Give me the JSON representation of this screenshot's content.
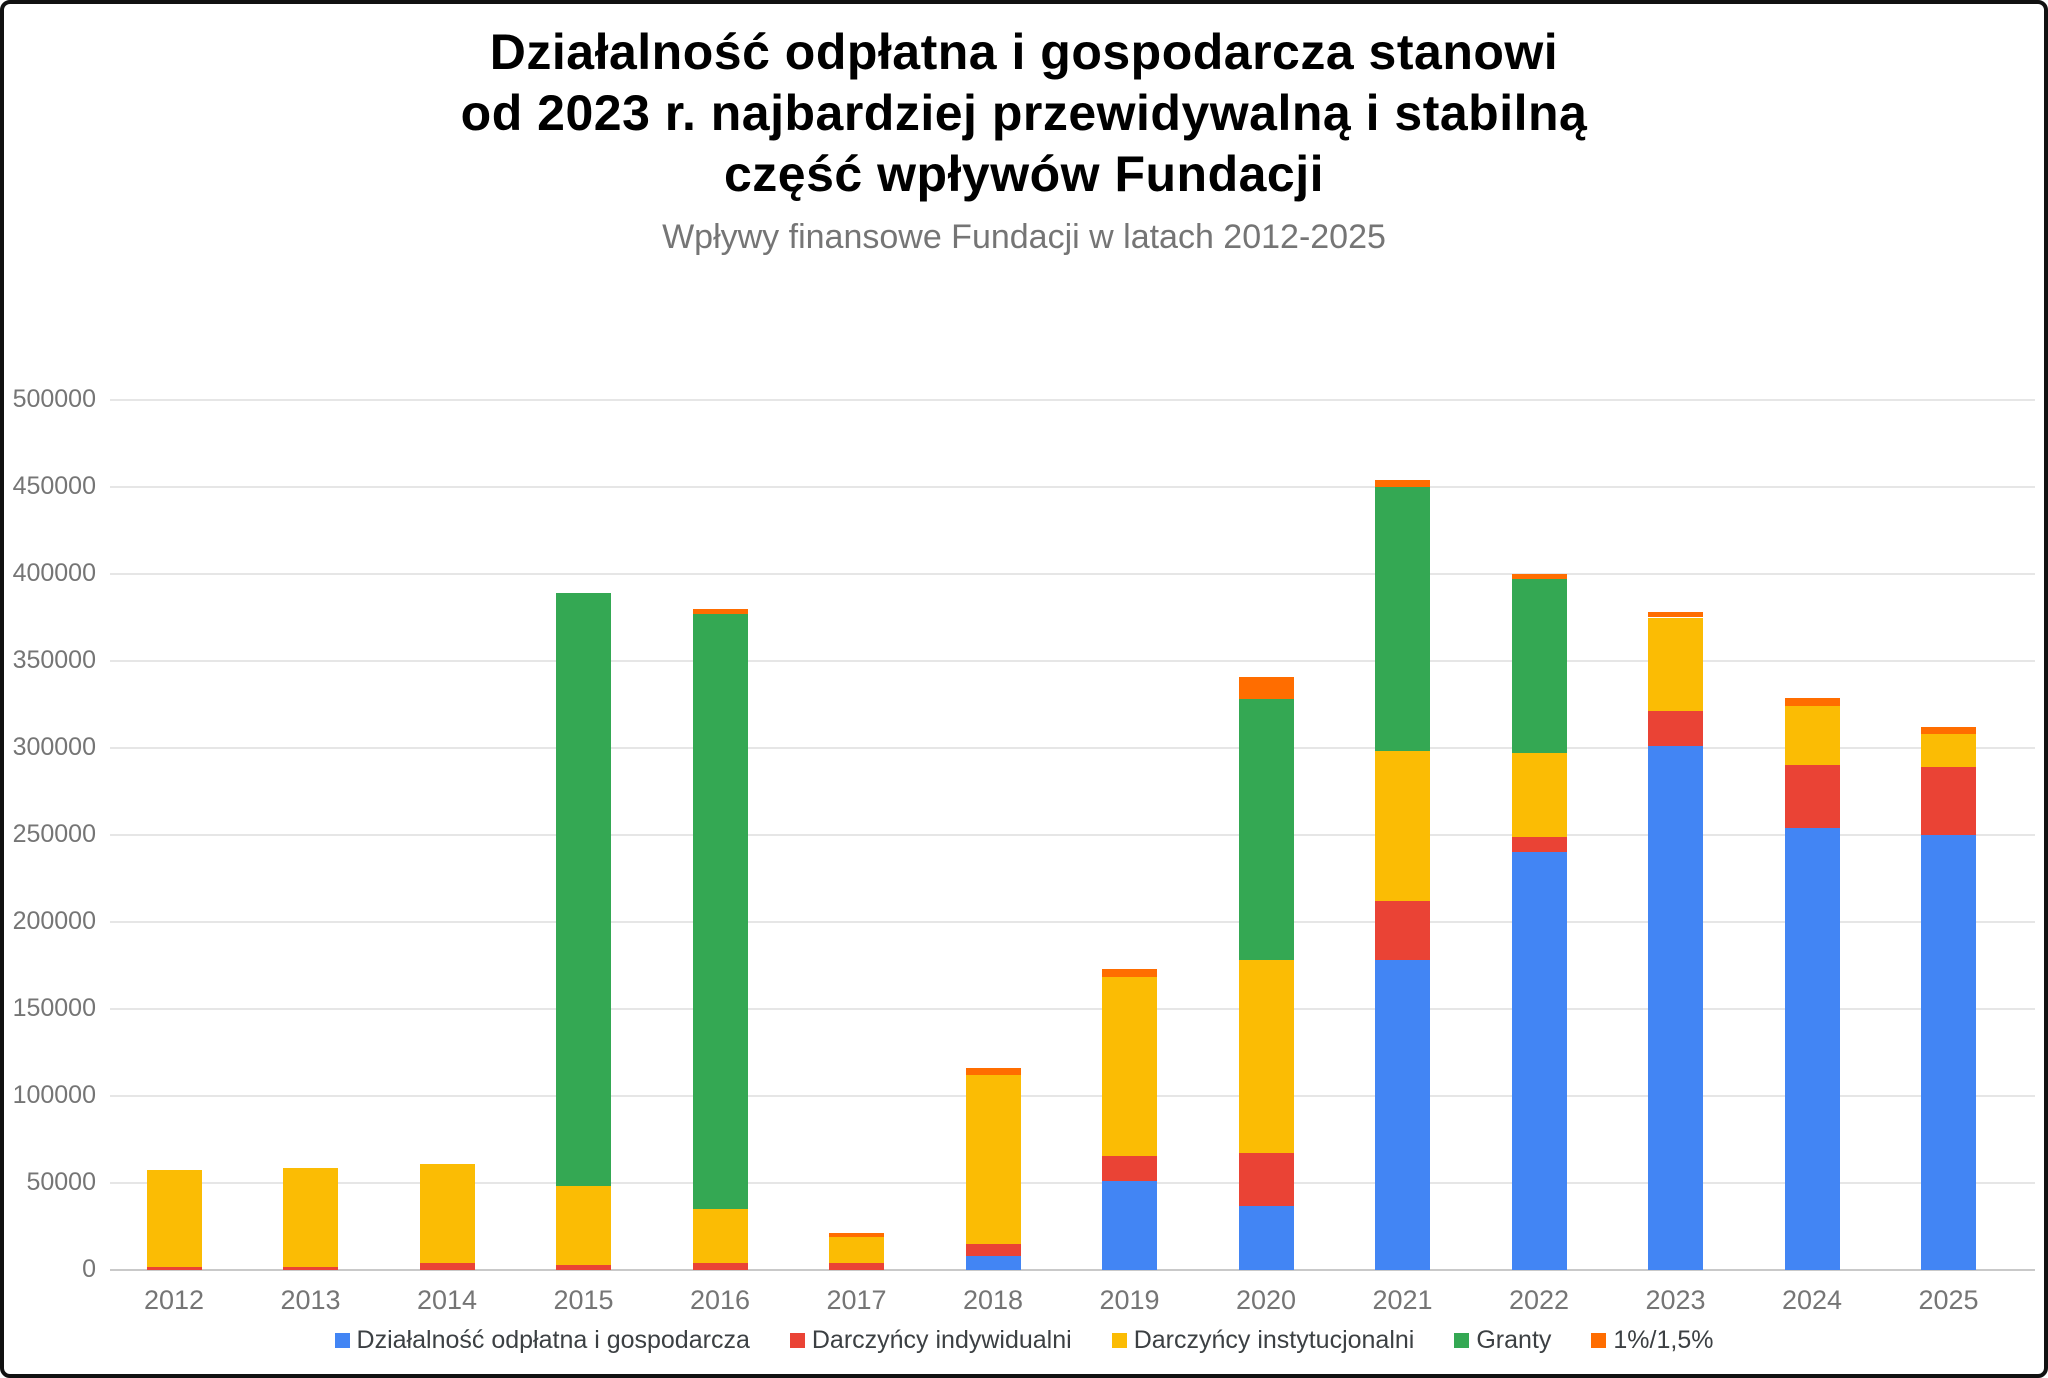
{
  "header": {
    "title": "Działalność odpłatna i gospodarcza stanowi\nod 2023 r. najbardziej przewidywalną i stabilną\nczęść wpływów Fundacji",
    "subtitle": "Wpływy finansowe Fundacji w latach 2012-2025"
  },
  "chart_data": {
    "type": "bar",
    "stacked": true,
    "title": "Działalność odpłatna i gospodarcza stanowi od 2023 r. najbardziej przewidywalną i stabilną część wpływów Fundacji",
    "subtitle": "Wpływy finansowe Fundacji w latach 2012-2025",
    "categories": [
      "2012",
      "2013",
      "2014",
      "2015",
      "2016",
      "2017",
      "2018",
      "2019",
      "2020",
      "2021",
      "2022",
      "2023",
      "2024",
      "2025"
    ],
    "series": [
      {
        "name": "Działalność odpłatna i gospodarcza",
        "color": "#4285F4",
        "values": [
          0,
          0,
          0,
          0,
          0,
          0,
          8000,
          51000,
          37000,
          178000,
          240000,
          301000,
          254000,
          250000
        ]
      },
      {
        "name": "Darczyńcy indywidualni",
        "color": "#EA4335",
        "values": [
          1500,
          2000,
          4000,
          3000,
          4000,
          4000,
          7000,
          14500,
          30000,
          34000,
          9000,
          20000,
          36000,
          39000
        ]
      },
      {
        "name": "Darczyńcy instytucjonalni",
        "color": "#FBBC04",
        "values": [
          56000,
          56500,
          57000,
          45000,
          31000,
          15000,
          97000,
          103000,
          111000,
          86000,
          48000,
          54000,
          34000,
          19000
        ]
      },
      {
        "name": "Granty",
        "color": "#34A853",
        "values": [
          0,
          0,
          0,
          341000,
          342000,
          0,
          0,
          0,
          150000,
          152000,
          100000,
          0,
          0,
          0
        ]
      },
      {
        "name": "1%/1,5%",
        "color": "#FF6D00",
        "values": [
          0,
          0,
          0,
          0,
          3000,
          2500,
          4000,
          4500,
          13000,
          4000,
          3000,
          3000,
          5000,
          4000
        ]
      }
    ],
    "totals": [
      57500,
      58500,
      61000,
      389000,
      380000,
      21500,
      116000,
      173000,
      341000,
      454000,
      400000,
      378000,
      329000,
      312000
    ],
    "xlabel": "",
    "ylabel": "",
    "ylim": [
      0,
      500000
    ],
    "ytick_step": 50000,
    "ytick_labels": [
      "0",
      "50000",
      "100000",
      "150000",
      "200000",
      "250000",
      "300000",
      "350000",
      "400000",
      "450000",
      "500000"
    ],
    "grid": true,
    "legend_position": "bottom"
  },
  "colors": {
    "grid": "#e6e6e6",
    "axis_text": "#757575",
    "legend_text": "#3c4043",
    "frame_border": "#111111"
  }
}
